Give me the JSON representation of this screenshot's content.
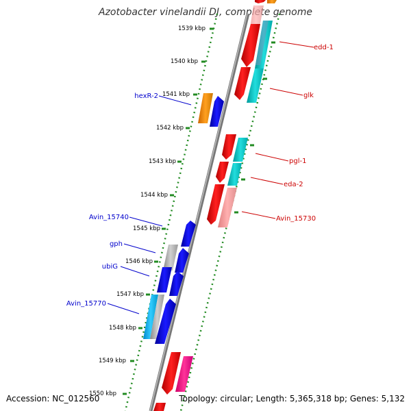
{
  "title": "Azotobacter vinelandii DJ, complete genome",
  "accession_text": "Accession: NC_012560",
  "topology_text": "Topology: circular; Length: 5,365,318 bp; Genes: 5,132",
  "ticks": [
    "1539 kbp",
    "1540 kbp",
    "1541 kbp",
    "1542 kbp",
    "1543 kbp",
    "1544 kbp",
    "1545 kbp",
    "1546 kbp",
    "1547 kbp",
    "1548 kbp",
    "1549 kbp",
    "1550 kbp"
  ],
  "genes_right": [
    "edd-1",
    "glk",
    "pgl-1",
    "eda-2",
    "Avin_15730"
  ],
  "genes_left": [
    "hexR-2",
    "Avin_15740",
    "gph",
    "ubiG",
    "Avin_15770"
  ],
  "colors": {
    "red": "#ff0000",
    "blue": "#0000ee",
    "cyan": "#00cccc",
    "orange": "#ff9900",
    "gray": "#999999",
    "pink": "#ff66aa",
    "tick": "#228b22",
    "label_right": "#cc0000",
    "label_left": "#0000cc"
  }
}
